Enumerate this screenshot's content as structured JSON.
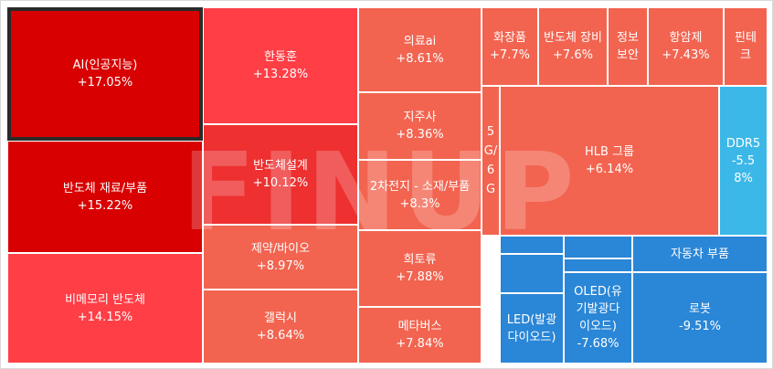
{
  "watermark": "FINUP",
  "tiles": [
    {
      "id": "ai",
      "name": "AI(인공지능)",
      "change": "+17.05%"
    },
    {
      "id": "semi-material",
      "name": "반도체 재료/부품",
      "change": "+15.22%"
    },
    {
      "id": "non-memory",
      "name": "비메모리 반도체",
      "change": "+14.15%"
    },
    {
      "id": "handonghun",
      "name": "한동훈",
      "change": "+13.28%"
    },
    {
      "id": "semi-design",
      "name": "반도체설계",
      "change": "+10.12%"
    },
    {
      "id": "pharma-bio",
      "name": "제약/바이오",
      "change": "+8.97%"
    },
    {
      "id": "galaxy",
      "name": "갤럭시",
      "change": "+8.64%"
    },
    {
      "id": "medical-ai",
      "name": "의료ai",
      "change": "+8.61%"
    },
    {
      "id": "holding",
      "name": "지주사",
      "change": "+8.36%"
    },
    {
      "id": "battery",
      "name": "2차전지 - 소재/부품",
      "change": "+8.3%"
    },
    {
      "id": "rare-earth",
      "name": "희토류",
      "change": "+7.88%"
    },
    {
      "id": "metaverse",
      "name": "메타버스",
      "change": "+7.84%"
    },
    {
      "id": "5g6g",
      "name": "5G/6G",
      "change": ""
    },
    {
      "id": "cosmetics",
      "name": "화장품",
      "change": "+7.7%"
    },
    {
      "id": "semi-equip",
      "name": "반도체 장비",
      "change": "+7.6%"
    },
    {
      "id": "info-security",
      "name": "정보보안",
      "change": ""
    },
    {
      "id": "anticancer",
      "name": "항암제",
      "change": "+7.43%"
    },
    {
      "id": "fintech",
      "name": "핀테크",
      "change": ""
    },
    {
      "id": "hlb",
      "name": "HLB 그룹",
      "change": "+6.14%"
    },
    {
      "id": "ddr5",
      "name": "DDR5",
      "change": "-5.58%"
    },
    {
      "id": "auto-parts",
      "name": "자동차 부품",
      "change": ""
    },
    {
      "id": "led",
      "name": "LED(발광다이오드)",
      "change": ""
    },
    {
      "id": "oled",
      "name": "OLED(유기발광다이오드)",
      "change": "-7.68%"
    },
    {
      "id": "robot",
      "name": "로봇",
      "change": "-9.51%"
    },
    {
      "id": "blue-small-1",
      "name": "",
      "change": ""
    },
    {
      "id": "blue-small-2",
      "name": "",
      "change": ""
    },
    {
      "id": "blue-small-3",
      "name": "",
      "change": ""
    },
    {
      "id": "blue-small-4",
      "name": "",
      "change": ""
    }
  ]
}
